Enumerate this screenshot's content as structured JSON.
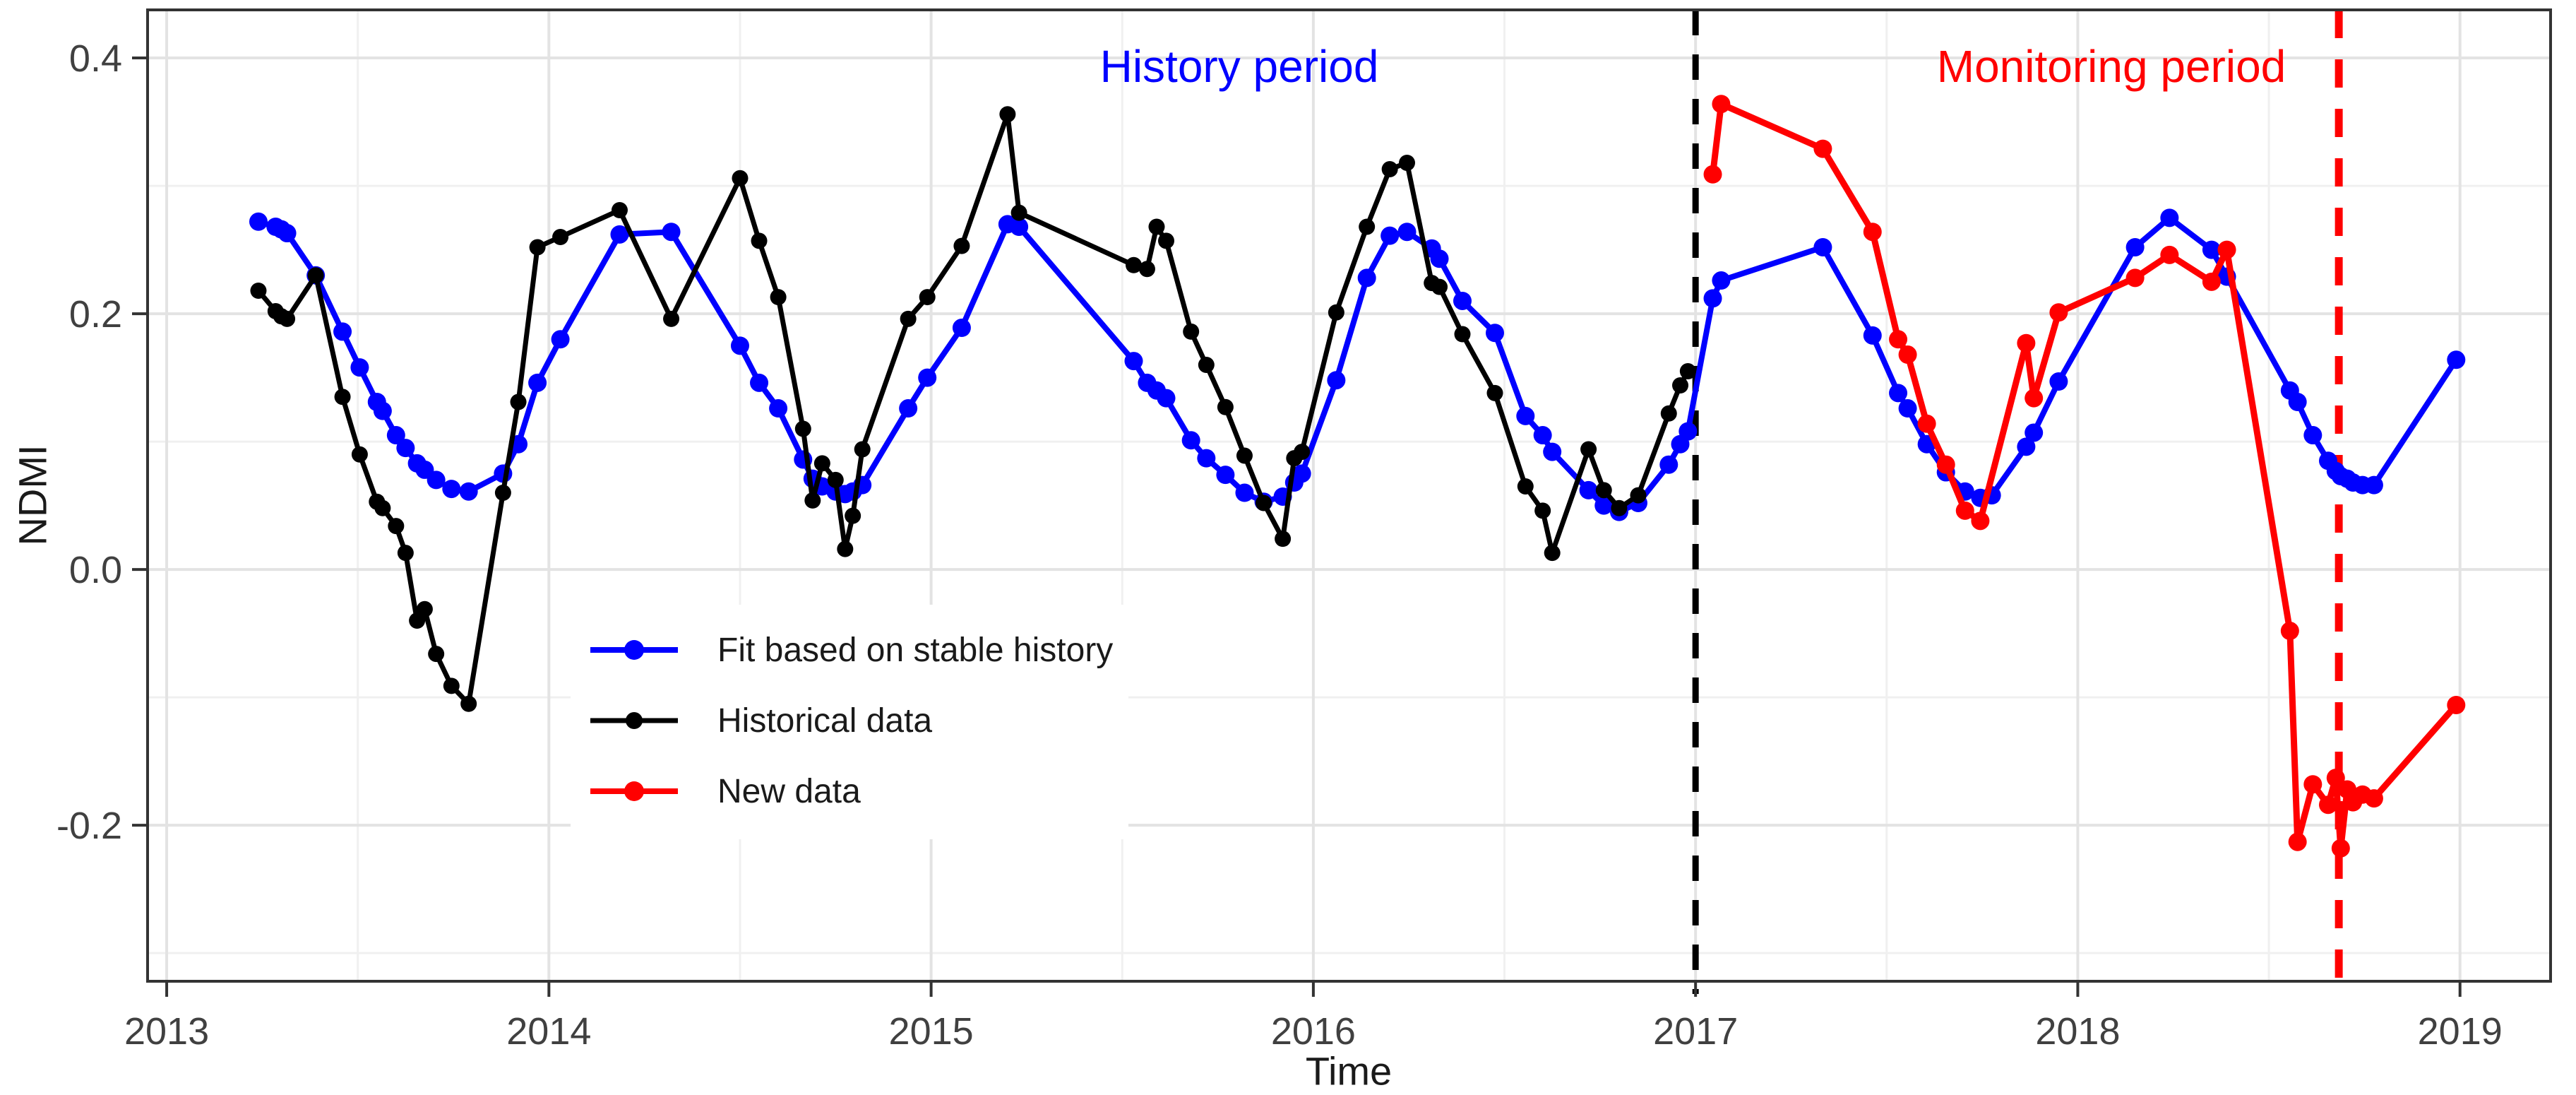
{
  "figure": {
    "background": "#ffffff",
    "panel_border_color": "#333333",
    "grid_major_color": "#e3e3e3",
    "grid_minor_color": "#f0f0f0",
    "tick_text_color": "#404040"
  },
  "annotations": {
    "history_label": {
      "text": "History period",
      "color": "#0000ff"
    },
    "monitoring_label": {
      "text": "Monitoring period",
      "color": "#ff0000"
    }
  },
  "legend": {
    "items": [
      {
        "label": "Fit based on stable history",
        "color": "#0000ff"
      },
      {
        "label": "Historical data",
        "color": "#000000"
      },
      {
        "label": "New data",
        "color": "#ff0000"
      }
    ]
  },
  "chart_data": {
    "type": "line",
    "title": "",
    "xlabel": "Time",
    "ylabel": "NDMI",
    "x_range": [
      2012.95,
      2019.237
    ],
    "y_range": [
      -0.322,
      0.4376
    ],
    "x_major_ticks": [
      2013,
      2014,
      2015,
      2016,
      2017,
      2018,
      2019
    ],
    "x_tick_labels": [
      "2013",
      "2014",
      "2015",
      "2016",
      "2017",
      "2018",
      "2019"
    ],
    "x_minor_ticks": [
      2013.5,
      2014.5,
      2015.5,
      2016.5,
      2017.5,
      2018.5
    ],
    "y_major_ticks": [
      0.4,
      0.2,
      0.0,
      -0.2
    ],
    "y_tick_labels": [
      "0.4",
      "0.2",
      "0.0",
      "-0.2"
    ],
    "y_minor_ticks": [
      0.3,
      0.1,
      -0.1,
      -0.3
    ],
    "grid": true,
    "legend_position": "inside-left-middle",
    "vlines": [
      {
        "x": 2017.0,
        "color": "#000000",
        "style": "dashed",
        "meaning": "start of monitoring period"
      },
      {
        "x": 2018.683,
        "color": "#ff0000",
        "style": "dashed",
        "meaning": "detected break"
      }
    ],
    "series": [
      {
        "name": "Fit based on stable history",
        "color": "#0000ff",
        "x": [
          2013.24,
          2013.285,
          2013.3,
          2013.315,
          2013.39,
          2013.46,
          2013.505,
          2013.55,
          2013.565,
          2013.6,
          2013.625,
          2013.655,
          2013.675,
          2013.705,
          2013.745,
          2013.79,
          2013.88,
          2013.92,
          2013.97,
          2014.03,
          2014.185,
          2014.32,
          2014.5,
          2014.55,
          2014.6,
          2014.665,
          2014.69,
          2014.715,
          2014.75,
          2014.775,
          2014.795,
          2014.82,
          2014.94,
          2014.99,
          2015.08,
          2015.2,
          2015.23,
          2015.53,
          2015.565,
          2015.59,
          2015.615,
          2015.68,
          2015.72,
          2015.77,
          2015.82,
          2015.87,
          2015.92,
          2015.95,
          2015.97,
          2016.06,
          2016.14,
          2016.2,
          2016.245,
          2016.31,
          2016.33,
          2016.39,
          2016.475,
          2016.555,
          2016.6,
          2016.625,
          2016.72,
          2016.76,
          2016.8,
          2016.85,
          2016.93,
          2016.96,
          2016.98,
          2017.045,
          2017.067,
          2017.333,
          2017.463,
          2017.53,
          2017.555,
          2017.605,
          2017.655,
          2017.705,
          2017.745,
          2017.775,
          2017.865,
          2017.885,
          2017.95,
          2018.15,
          2018.24,
          2018.35,
          2018.39,
          2018.555,
          2018.575,
          2018.615,
          2018.655,
          2018.675,
          2018.688,
          2018.705,
          2018.72,
          2018.745,
          2018.775,
          2018.99
        ],
        "y": [
          0.272,
          0.268,
          0.266,
          0.263,
          0.23,
          0.186,
          0.158,
          0.131,
          0.124,
          0.105,
          0.095,
          0.083,
          0.078,
          0.07,
          0.063,
          0.061,
          0.075,
          0.098,
          0.146,
          0.18,
          0.262,
          0.264,
          0.175,
          0.146,
          0.126,
          0.086,
          0.071,
          0.065,
          0.061,
          0.059,
          0.061,
          0.066,
          0.126,
          0.15,
          0.189,
          0.27,
          0.268,
          0.163,
          0.146,
          0.14,
          0.134,
          0.101,
          0.087,
          0.074,
          0.06,
          0.053,
          0.057,
          0.068,
          0.075,
          0.148,
          0.228,
          0.261,
          0.264,
          0.251,
          0.243,
          0.21,
          0.185,
          0.12,
          0.105,
          0.092,
          0.062,
          0.05,
          0.045,
          0.052,
          0.082,
          0.098,
          0.108,
          0.212,
          0.226,
          0.252,
          0.183,
          0.138,
          0.126,
          0.098,
          0.076,
          0.061,
          0.056,
          0.058,
          0.096,
          0.107,
          0.147,
          0.252,
          0.275,
          0.25,
          0.229,
          0.14,
          0.131,
          0.105,
          0.085,
          0.077,
          0.073,
          0.071,
          0.068,
          0.066,
          0.066,
          0.164
        ]
      },
      {
        "name": "Historical data",
        "color": "#000000",
        "x": [
          2013.24,
          2013.285,
          2013.3,
          2013.315,
          2013.39,
          2013.46,
          2013.505,
          2013.55,
          2013.565,
          2013.6,
          2013.625,
          2013.655,
          2013.675,
          2013.705,
          2013.745,
          2013.79,
          2013.88,
          2013.92,
          2013.97,
          2014.03,
          2014.185,
          2014.32,
          2014.5,
          2014.55,
          2014.6,
          2014.665,
          2014.69,
          2014.715,
          2014.75,
          2014.775,
          2014.795,
          2014.82,
          2014.94,
          2014.99,
          2015.08,
          2015.2,
          2015.23,
          2015.53,
          2015.565,
          2015.59,
          2015.615,
          2015.68,
          2015.72,
          2015.77,
          2015.82,
          2015.87,
          2015.92,
          2015.95,
          2015.97,
          2016.06,
          2016.14,
          2016.2,
          2016.245,
          2016.31,
          2016.33,
          2016.39,
          2016.475,
          2016.555,
          2016.6,
          2016.625,
          2016.72,
          2016.76,
          2016.8,
          2016.85,
          2016.93,
          2016.96,
          2016.98
        ],
        "y": [
          0.218,
          0.202,
          0.198,
          0.196,
          0.23,
          0.135,
          0.09,
          0.053,
          0.048,
          0.034,
          0.013,
          -0.04,
          -0.031,
          -0.066,
          -0.091,
          -0.105,
          0.06,
          0.131,
          0.252,
          0.26,
          0.281,
          0.196,
          0.306,
          0.257,
          0.213,
          0.11,
          0.054,
          0.083,
          0.07,
          0.016,
          0.042,
          0.094,
          0.196,
          0.213,
          0.253,
          0.356,
          0.279,
          0.238,
          0.235,
          0.268,
          0.257,
          0.186,
          0.16,
          0.127,
          0.089,
          0.052,
          0.024,
          0.087,
          0.092,
          0.201,
          0.268,
          0.313,
          0.318,
          0.224,
          0.221,
          0.184,
          0.138,
          0.065,
          0.046,
          0.013,
          0.094,
          0.062,
          0.048,
          0.058,
          0.122,
          0.144,
          0.155
        ]
      },
      {
        "name": "New data",
        "color": "#ff0000",
        "x": [
          2017.045,
          2017.067,
          2017.333,
          2017.463,
          2017.53,
          2017.555,
          2017.605,
          2017.655,
          2017.705,
          2017.745,
          2017.865,
          2017.885,
          2017.95,
          2018.15,
          2018.24,
          2018.35,
          2018.39,
          2018.555,
          2018.575,
          2018.615,
          2018.655,
          2018.675,
          2018.688,
          2018.705,
          2018.72,
          2018.745,
          2018.775,
          2018.99
        ],
        "y": [
          0.309,
          0.364,
          0.329,
          0.264,
          0.18,
          0.168,
          0.114,
          0.082,
          0.046,
          0.038,
          0.177,
          0.134,
          0.201,
          0.228,
          0.246,
          0.225,
          0.25,
          -0.048,
          -0.213,
          -0.168,
          -0.184,
          -0.163,
          -0.218,
          -0.172,
          -0.182,
          -0.176,
          -0.179,
          -0.106
        ]
      }
    ]
  }
}
